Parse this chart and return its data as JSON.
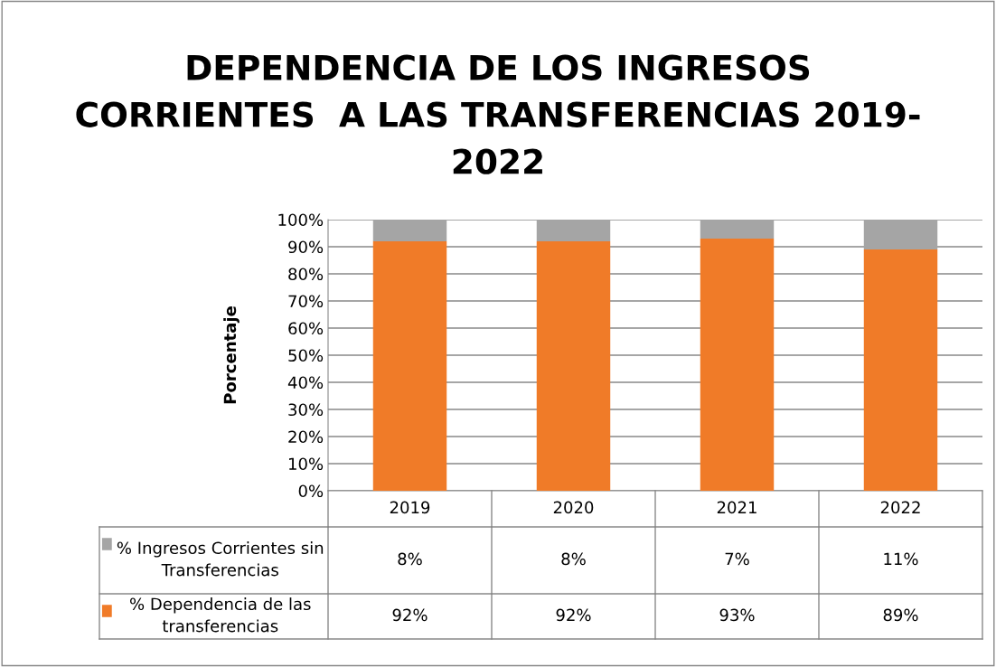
{
  "chart_data": {
    "type": "bar",
    "title": "DEPENDENCIA DE LOS INGRESOS\nCORRIENTES  A LAS TRANSFERENCIAS 2019-\n2022",
    "ylabel": "Porcentaje",
    "categories": [
      "2019",
      "2020",
      "2021",
      "2022"
    ],
    "stacked": true,
    "series": [
      {
        "name": "% Dependencia de las\ntransferencias",
        "color": "#f07b28",
        "values": [
          92,
          92,
          93,
          89
        ],
        "value_labels": [
          "92%",
          "92%",
          "93%",
          "89%"
        ]
      },
      {
        "name": "% Ingresos Corrientes sin\nTransferencias",
        "color": "#a5a5a5",
        "values": [
          8,
          8,
          7,
          11
        ],
        "value_labels": [
          "8%",
          "8%",
          "7%",
          "11%"
        ]
      }
    ],
    "ylim": [
      0,
      100
    ],
    "yticks": [
      {
        "value": 0,
        "label": "0%"
      },
      {
        "value": 10,
        "label": "10%"
      },
      {
        "value": 20,
        "label": "20%"
      },
      {
        "value": 30,
        "label": "30%"
      },
      {
        "value": 40,
        "label": "40%"
      },
      {
        "value": 50,
        "label": "50%"
      },
      {
        "value": 60,
        "label": "60%"
      },
      {
        "value": 70,
        "label": "70%"
      },
      {
        "value": 80,
        "label": "80%"
      },
      {
        "value": 90,
        "label": "90%"
      },
      {
        "value": 100,
        "label": "100%"
      }
    ],
    "grid": "y",
    "legend": "bottom"
  }
}
